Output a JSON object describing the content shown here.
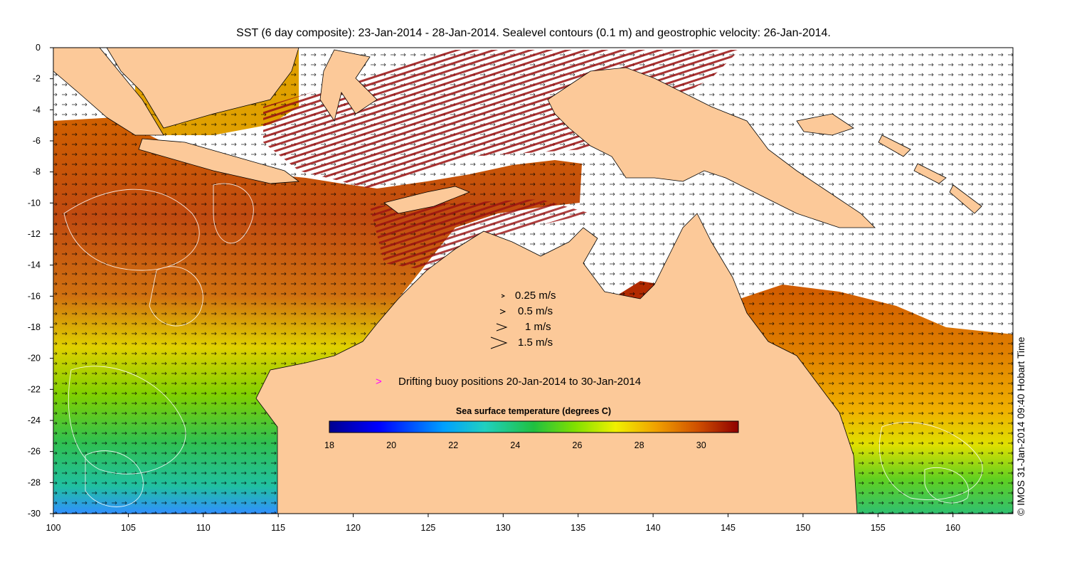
{
  "title": "SST (6 day composite): 23-Jan-2014 - 28-Jan-2014. Sealevel contours (0.1 m) and geostrophic velocity: 26-Jan-2014.",
  "credit": "© IMOS 31-Jan-2014 09:40 Hobart Time",
  "axes": {
    "x_ticks": [
      "100",
      "105",
      "110",
      "115",
      "120",
      "125",
      "130",
      "135",
      "140",
      "145",
      "150",
      "155",
      "160"
    ],
    "y_ticks": [
      "0",
      "-2",
      "-4",
      "-6",
      "-8",
      "-10",
      "-12",
      "-14",
      "-16",
      "-18",
      "-20",
      "-22",
      "-24",
      "-26",
      "-28",
      "-30"
    ],
    "lon_range": [
      100,
      164
    ],
    "lat_range": [
      -30,
      0
    ]
  },
  "velocity_legend": [
    {
      "label": "0.25 m/s",
      "speed": 0.25
    },
    {
      "label": "0.5 m/s",
      "speed": 0.5
    },
    {
      "label": "1 m/s",
      "speed": 1
    },
    {
      "label": "1.5 m/s",
      "speed": 1.5
    }
  ],
  "buoy_legend": {
    "symbol": ">",
    "label": "Drifting buoy positions 20-Jan-2014 to 30-Jan-2014",
    "color": "#ff00ff"
  },
  "colorbar": {
    "title": "Sea surface temperature (degrees C)",
    "ticks": [
      "18",
      "20",
      "22",
      "24",
      "26",
      "28",
      "30"
    ],
    "range": [
      18,
      31.2
    ]
  },
  "colors": {
    "land": "#fcc999",
    "coast": "#000000",
    "contour": "#ffffff",
    "arrow": "#000000"
  }
}
